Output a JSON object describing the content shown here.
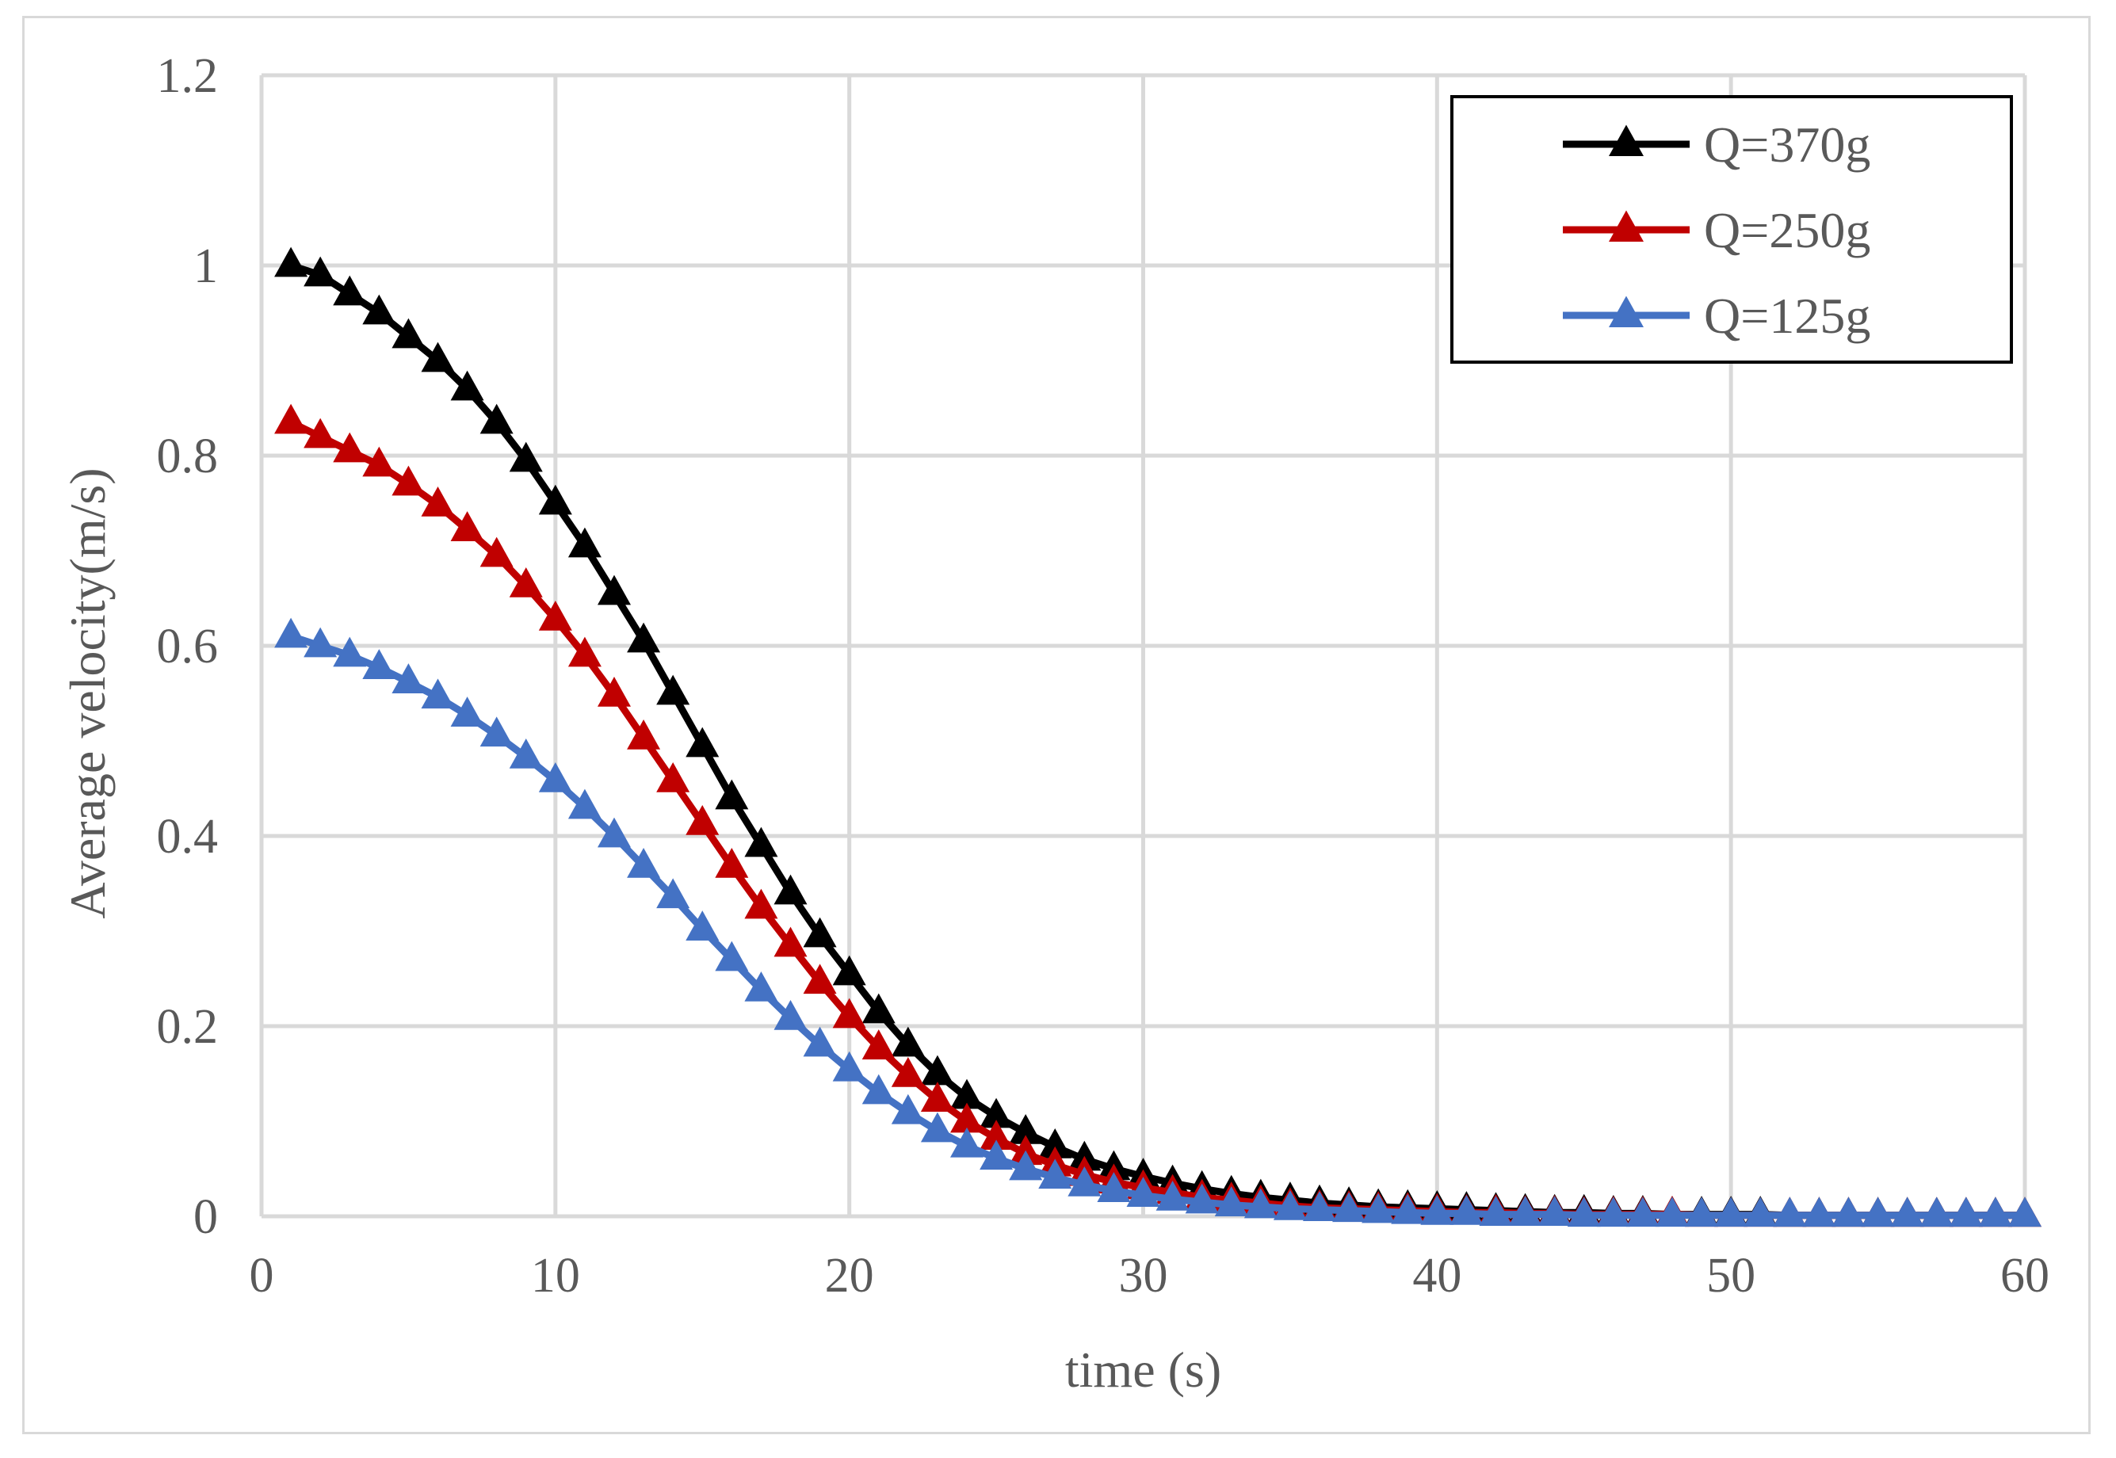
{
  "chart_data": {
    "type": "line",
    "title": "",
    "xlabel": "time (s)",
    "ylabel": "Average velocity(m/s)",
    "xlim": [
      0,
      60
    ],
    "ylim": [
      0,
      1.2
    ],
    "xticks": [
      0,
      10,
      20,
      30,
      40,
      50,
      60
    ],
    "yticks": [
      0,
      0.2,
      0.4,
      0.6,
      0.8,
      1,
      1.2
    ],
    "xtick_labels": [
      "0",
      "10",
      "20",
      "30",
      "40",
      "50",
      "60"
    ],
    "ytick_labels": [
      "0",
      "0.2",
      "0.4",
      "0.6",
      "0.8",
      "1",
      "1.2"
    ],
    "grid": true,
    "legend_position": "top-right",
    "marker": "triangle",
    "x": [
      1,
      2,
      3,
      4,
      5,
      6,
      7,
      8,
      9,
      10,
      11,
      12,
      13,
      14,
      15,
      16,
      17,
      18,
      19,
      20,
      21,
      22,
      23,
      24,
      25,
      26,
      27,
      28,
      29,
      30,
      31,
      32,
      33,
      34,
      35,
      36,
      37,
      38,
      39,
      40,
      41,
      42,
      43,
      44,
      45,
      46,
      47,
      48,
      49,
      50,
      51,
      52,
      53,
      54,
      55,
      56,
      57,
      58,
      59,
      60
    ],
    "series": [
      {
        "name": "Q=370g",
        "color": "#000000",
        "values": [
          1.0,
          0.99,
          0.97,
          0.95,
          0.925,
          0.9,
          0.87,
          0.835,
          0.795,
          0.75,
          0.705,
          0.655,
          0.605,
          0.55,
          0.495,
          0.44,
          0.39,
          0.34,
          0.295,
          0.255,
          0.215,
          0.18,
          0.15,
          0.125,
          0.105,
          0.088,
          0.073,
          0.06,
          0.05,
          0.042,
          0.035,
          0.029,
          0.024,
          0.02,
          0.017,
          0.014,
          0.012,
          0.01,
          0.009,
          0.008,
          0.007,
          0.006,
          0.005,
          0.004,
          0.004,
          0.003,
          0.003,
          0.002,
          0.002,
          0.002,
          0.002,
          0.001,
          0.001,
          0.001,
          0.001,
          0.001,
          0.001,
          0.001,
          0.001,
          0.001
        ]
      },
      {
        "name": "Q=250g",
        "color": "#c00000",
        "values": [
          0.835,
          0.82,
          0.805,
          0.79,
          0.77,
          0.748,
          0.722,
          0.695,
          0.663,
          0.628,
          0.59,
          0.548,
          0.503,
          0.458,
          0.413,
          0.368,
          0.325,
          0.285,
          0.246,
          0.21,
          0.177,
          0.148,
          0.122,
          0.1,
          0.082,
          0.066,
          0.054,
          0.044,
          0.036,
          0.03,
          0.025,
          0.02,
          0.017,
          0.014,
          0.011,
          0.009,
          0.008,
          0.007,
          0.006,
          0.005,
          0.004,
          0.004,
          0.003,
          0.003,
          0.002,
          0.002,
          0.002,
          0.002,
          0.001,
          0.001,
          0.001,
          0.001,
          0.001,
          0.001,
          0.001,
          0.001,
          0.001,
          0.001,
          0.001,
          0.001
        ]
      },
      {
        "name": "Q=125g",
        "color": "#4472c4",
        "values": [
          0.61,
          0.6,
          0.59,
          0.577,
          0.562,
          0.546,
          0.527,
          0.506,
          0.483,
          0.458,
          0.43,
          0.4,
          0.368,
          0.336,
          0.302,
          0.27,
          0.238,
          0.208,
          0.18,
          0.154,
          0.13,
          0.109,
          0.09,
          0.074,
          0.061,
          0.05,
          0.041,
          0.033,
          0.027,
          0.022,
          0.018,
          0.015,
          0.012,
          0.01,
          0.008,
          0.007,
          0.006,
          0.005,
          0.004,
          0.003,
          0.003,
          0.002,
          0.002,
          0.002,
          0.001,
          0.001,
          0.001,
          0.001,
          0.001,
          0.001,
          0.001,
          0.001,
          0.001,
          0.001,
          0.001,
          0.001,
          0.001,
          0.001,
          0.001,
          0.001
        ]
      }
    ]
  }
}
